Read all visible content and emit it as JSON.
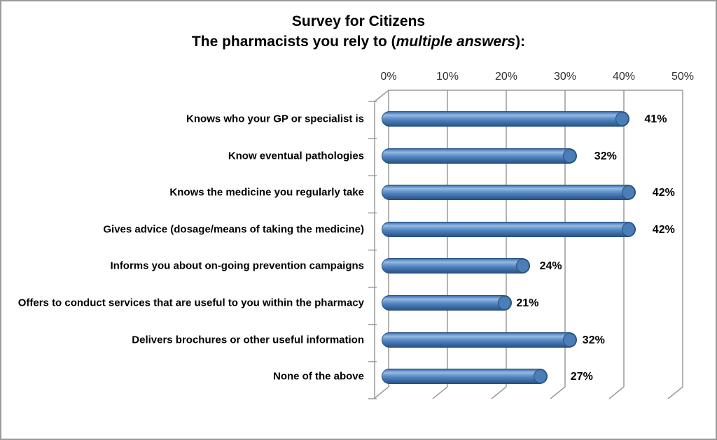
{
  "frame": {
    "background": "#ffffff",
    "border_color": "#9b9b9b"
  },
  "chart_data": {
    "type": "bar",
    "orientation": "horizontal",
    "style": "3d-cylinder",
    "title": {
      "line1": "Survey for Citizens",
      "line2_prefix": "The pharmacists you rely to (",
      "line2_italic": "multiple answers",
      "line2_suffix": "):"
    },
    "categories": [
      "Knows who your GP or specialist is",
      "Know eventual pathologies",
      "Knows the medicine you regularly take",
      "Gives advice (dosage/means of taking the medicine)",
      "Informs you about on-going prevention campaigns",
      "Offers to conduct services that are useful to you within the pharmacy",
      "Delivers brochures or other useful information",
      "None of the above"
    ],
    "values": [
      41,
      32,
      42,
      42,
      24,
      21,
      32,
      27
    ],
    "value_labels": [
      "41%",
      "32%",
      "42%",
      "42%",
      "24%",
      "21%",
      "32%",
      "27%"
    ],
    "xlabel": "",
    "ylabel": "",
    "x_axis": {
      "position": "top",
      "min": 0,
      "max": 50,
      "tick_values": [
        0,
        10,
        20,
        30,
        40,
        50
      ],
      "tick_labels": [
        "0%",
        "10%",
        "20%",
        "30%",
        "40%",
        "50%"
      ]
    },
    "grid": "vertical",
    "legend": "none",
    "colors": {
      "bar_base": "#4F81BD",
      "bar_highlight": "#9CBFE4",
      "bar_shadow": "#2B5486",
      "bar_outline": "#27507D",
      "gridline": "#9A9A9A",
      "text": "#000000"
    }
  }
}
